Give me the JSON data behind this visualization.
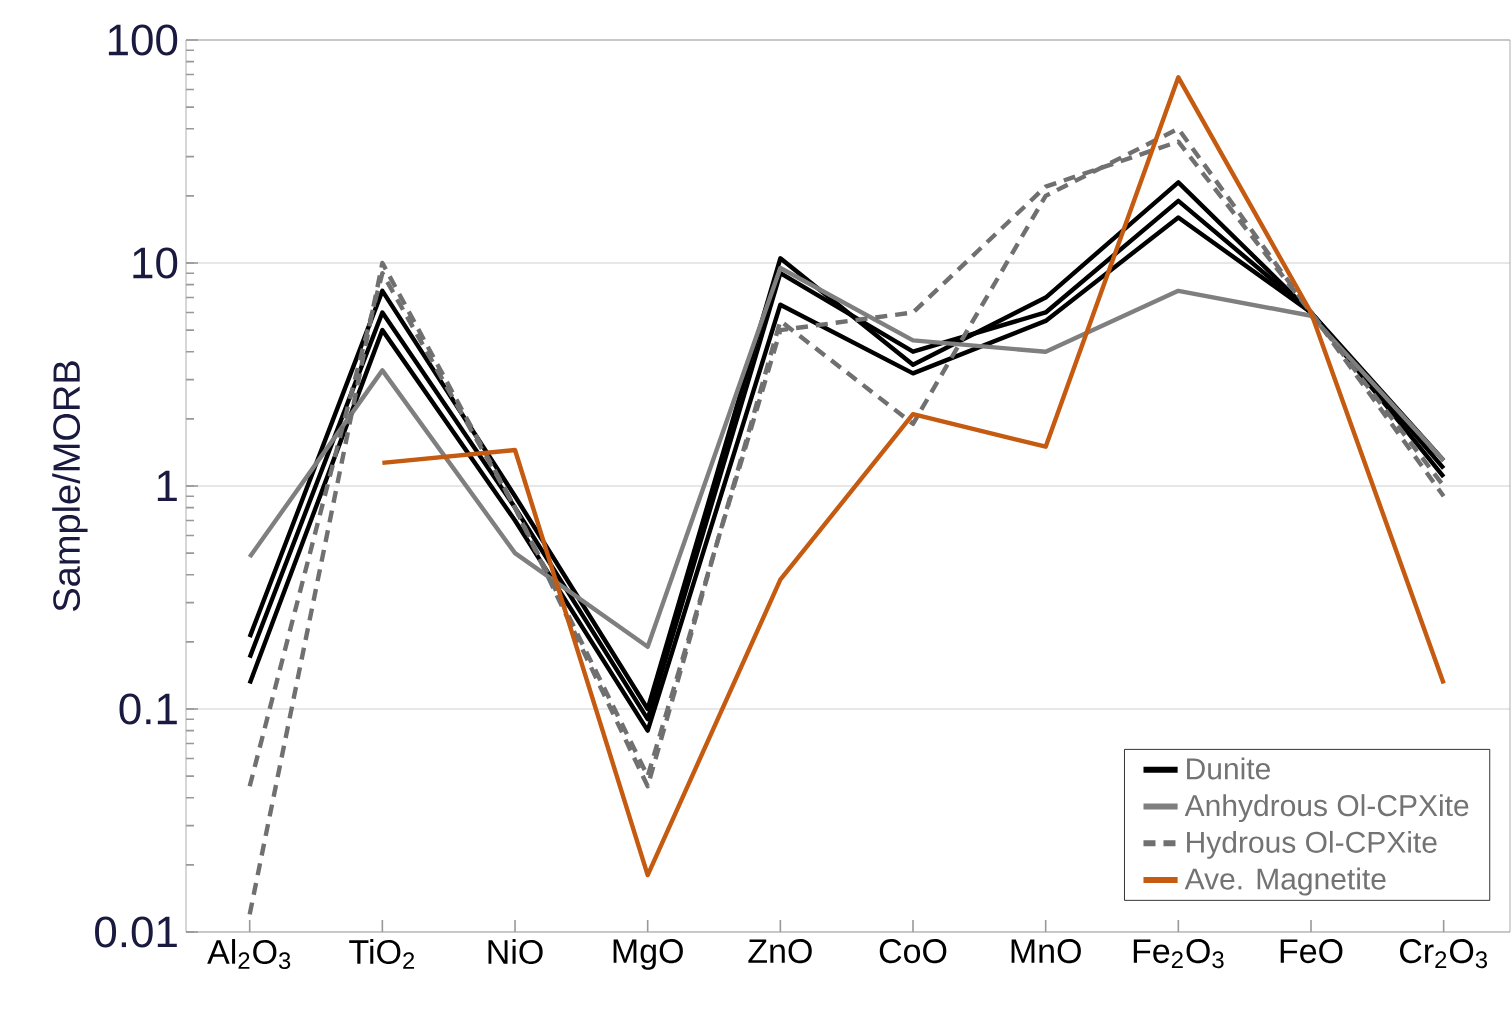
{
  "chart_data": {
    "type": "line",
    "ylabel": "Sample/MORB",
    "categories": [
      "Al$_{2}$O$_{3}$",
      "TiO$_{2}$",
      "NiO",
      "MgO",
      "ZnO",
      "CoO",
      "MnO",
      "Fe$_{2}$O$_{3}$",
      "FeO",
      "Cr$_{2}$O$_{3}$"
    ],
    "log": true,
    "ylim": [
      0.01,
      100
    ],
    "yticks": [
      0.01,
      0.1,
      1,
      10,
      100
    ],
    "grid": "y",
    "legend": "bottom right",
    "marker": "none",
    "series": [
      {
        "name": "Dunite",
        "color": "#000000",
        "line_style": "solid",
        "values": [
          0.21,
          7.5,
          0.9,
          0.1,
          10.5,
          3.5,
          7,
          23,
          6,
          1.2
        ]
      },
      {
        "color": "#000000",
        "line_style": "solid",
        "values": [
          0.13,
          5,
          0.7,
          0.08,
          6.5,
          3.2,
          5.5,
          16,
          6,
          1.1
        ]
      },
      {
        "color": "#000000",
        "line_style": "solid",
        "values": [
          0.17,
          6,
          0.8,
          0.09,
          9,
          4,
          6,
          19,
          6,
          1.3
        ]
      },
      {
        "name": "Anhydrous Ol-CPXite",
        "color": "#7f7f7f",
        "line_style": "solid",
        "values": [
          0.48,
          3.3,
          0.5,
          0.19,
          9.5,
          4.5,
          4,
          7.5,
          5.8,
          1.3
        ]
      },
      {
        "name": "Hydrous Ol-CPXite",
        "color": "#707070",
        "line_style": "dashed",
        "values": [
          0.012,
          10,
          0.8,
          0.045,
          5.5,
          1.9,
          20,
          40,
          6,
          0.9
        ]
      },
      {
        "color": "#707070",
        "line_style": "dashed",
        "values": [
          0.045,
          9,
          0.8,
          0.05,
          5,
          6,
          22,
          35,
          6,
          1.0
        ]
      },
      {
        "name": "Ave. Magnetite",
        "color": "#c55a11",
        "line_style": "solid",
        "values": [
          null,
          1.27,
          1.45,
          0.018,
          0.38,
          2.1,
          1.5,
          68,
          6,
          0.13
        ]
      }
    ]
  }
}
